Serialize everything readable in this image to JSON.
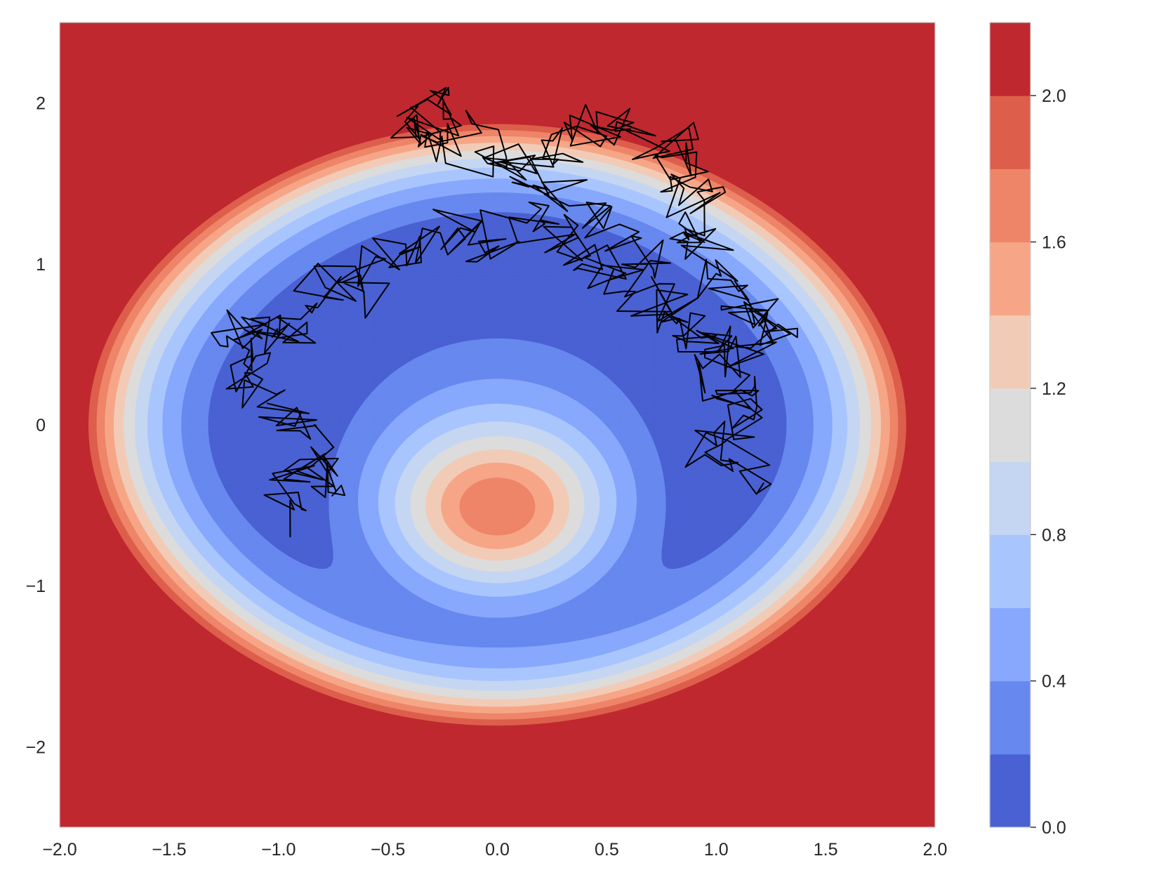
{
  "chart_data": [
    {
      "type": "heatmap",
      "subtype": "filled-contour with sampled trajectory",
      "title": "",
      "xlabel": "",
      "ylabel": "",
      "xlim": [
        -2.0,
        2.0
      ],
      "ylim": [
        -2.5,
        2.5
      ],
      "x_ticks": [
        -2.0,
        -1.5,
        -1.0,
        -0.5,
        0.0,
        0.5,
        1.0,
        1.5,
        2.0
      ],
      "x_tick_labels": [
        "−2.0",
        "−1.5",
        "−1.0",
        "−0.5",
        "0.0",
        "0.5",
        "1.0",
        "1.5",
        "2.0"
      ],
      "y_ticks": [
        -2,
        -1,
        0,
        1,
        2
      ],
      "y_tick_labels": [
        "−2",
        "−1",
        "0",
        "1",
        "2"
      ],
      "grid": false,
      "colormap": "coolwarm",
      "contour_levels": [
        0.0,
        0.2,
        0.4,
        0.6,
        0.8,
        1.0,
        1.2,
        1.4,
        1.6,
        1.8,
        2.0,
        2.2
      ],
      "level_colors": [
        "#4961d2",
        "#6788ee",
        "#87a8fc",
        "#a8c5fe",
        "#c5d6f2",
        "#dddcdc",
        "#f2cbb7",
        "#f6a687",
        "#ee8468",
        "#dd5f4b",
        "#c0282f"
      ],
      "features": {
        "minima_near": [
          [
            -1.0,
            0.0
          ],
          [
            1.0,
            0.0
          ]
        ],
        "central_peak_near": [
          0.0,
          -0.55
        ],
        "central_peak_value": 1.6
      },
      "trajectory": {
        "color": "#000000",
        "description_points_xy": [
          [
            -0.99,
            -0.64
          ],
          [
            -0.94,
            -0.35
          ],
          [
            -0.86,
            -0.2
          ],
          [
            -0.74,
            -0.39
          ],
          [
            -0.86,
            -0.06
          ],
          [
            -0.98,
            0.03
          ],
          [
            -1.07,
            0.22
          ],
          [
            -1.16,
            0.38
          ],
          [
            -1.2,
            0.56
          ],
          [
            -1.08,
            0.64
          ],
          [
            -0.96,
            0.48
          ],
          [
            -0.88,
            0.72
          ],
          [
            -0.78,
            0.9
          ],
          [
            -0.62,
            0.78
          ],
          [
            -0.52,
            1.06
          ],
          [
            -0.3,
            1.12
          ],
          [
            -0.18,
            1.22
          ],
          [
            -0.05,
            1.05
          ],
          [
            0.1,
            1.32
          ],
          [
            0.25,
            1.18
          ],
          [
            0.42,
            1.1
          ],
          [
            0.55,
            0.95
          ],
          [
            0.68,
            0.82
          ],
          [
            0.84,
            0.62
          ],
          [
            0.95,
            0.48
          ],
          [
            1.02,
            0.3
          ],
          [
            1.12,
            0.18
          ],
          [
            1.05,
            0.02
          ],
          [
            0.98,
            -0.16
          ],
          [
            1.18,
            -0.36
          ],
          [
            1.08,
            0.2
          ],
          [
            0.92,
            0.55
          ],
          [
            0.78,
            0.75
          ],
          [
            0.6,
            1.05
          ],
          [
            0.45,
            1.25
          ],
          [
            0.25,
            1.45
          ],
          [
            0.05,
            1.6
          ],
          [
            -0.18,
            1.85
          ],
          [
            -0.38,
            2.05
          ],
          [
            -0.26,
            1.9
          ],
          [
            -0.38,
            1.85
          ],
          [
            -0.22,
            1.72
          ],
          [
            0.05,
            1.62
          ],
          [
            0.25,
            1.75
          ],
          [
            0.42,
            1.8
          ],
          [
            0.48,
            1.92
          ],
          [
            0.62,
            1.8
          ],
          [
            0.82,
            1.75
          ],
          [
            0.85,
            1.6
          ],
          [
            0.92,
            1.5
          ],
          [
            0.9,
            1.35
          ],
          [
            0.8,
            1.2
          ],
          [
            0.95,
            1.05
          ],
          [
            1.06,
            0.85
          ],
          [
            1.15,
            0.72
          ],
          [
            1.2,
            0.62
          ],
          [
            1.29,
            0.56
          ],
          [
            1.0,
            0.45
          ]
        ]
      }
    },
    {
      "type": "colorbar",
      "ylim": [
        0.0,
        2.2
      ],
      "ticks": [
        0.0,
        0.4,
        0.8,
        1.2,
        1.6,
        2.0
      ],
      "tick_labels": [
        "0.0",
        "0.4",
        "0.8",
        "1.2",
        "1.6",
        "2.0"
      ],
      "level_colors": [
        "#4961d2",
        "#6788ee",
        "#87a8fc",
        "#a8c5fe",
        "#c5d6f2",
        "#dddcdc",
        "#f2cbb7",
        "#f6a687",
        "#ee8468",
        "#dd5f4b",
        "#c0282f"
      ]
    }
  ]
}
